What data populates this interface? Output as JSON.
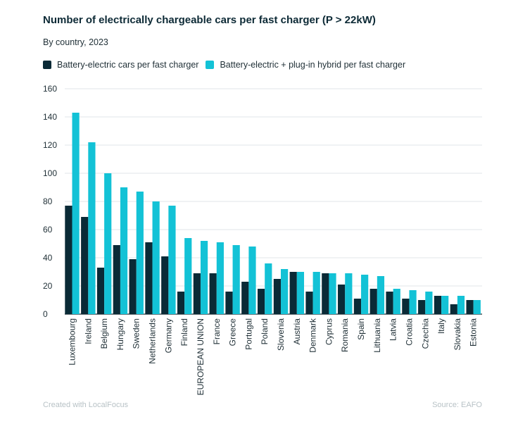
{
  "header": {
    "title": "Number of electrically chargeable cars per fast charger (P > 22kW)",
    "subtitle": "By country, 2023"
  },
  "footer": {
    "credit": "Created with LocalFocus",
    "source": "Source: EAFO"
  },
  "colors": {
    "bev": "#0a2a36",
    "phev": "#13c2d6",
    "grid": "#e2e6e8",
    "axis": "#1f2f36"
  },
  "chart_data": {
    "type": "bar",
    "title": "Number of electrically chargeable cars per fast charger (P > 22kW)",
    "subtitle": "By country, 2023",
    "xlabel": "",
    "ylabel": "",
    "ylim": [
      0,
      160
    ],
    "yticks": [
      0,
      20,
      40,
      60,
      80,
      100,
      120,
      140,
      160
    ],
    "grid": true,
    "legend_position": "top-left",
    "categories": [
      "Luxembourg",
      "Ireland",
      "Belgium",
      "Hungary",
      "Sweden",
      "Netherlands",
      "Germany",
      "Finland",
      "EUROPEAN UNION",
      "France",
      "Greece",
      "Portugal",
      "Poland",
      "Slovenia",
      "Austria",
      "Denmark",
      "Cyprus",
      "Romania",
      "Spain",
      "Lithuania",
      "Latvia",
      "Croatia",
      "Czechia",
      "Italy",
      "Slovakia",
      "Estonia"
    ],
    "series": [
      {
        "name": "Battery-electric cars per fast charger",
        "values": [
          77,
          69,
          33,
          49,
          39,
          51,
          41,
          16,
          29,
          29,
          16,
          23,
          18,
          25,
          30,
          16,
          29,
          21,
          11,
          18,
          16,
          11,
          10,
          13,
          7,
          10
        ]
      },
      {
        "name": "Battery-electric + plug-in hybrid per fast charger",
        "values": [
          143,
          122,
          100,
          90,
          87,
          80,
          77,
          54,
          52,
          51,
          49,
          48,
          36,
          32,
          30,
          30,
          29,
          29,
          28,
          27,
          18,
          17,
          16,
          13,
          13,
          10
        ]
      }
    ]
  }
}
